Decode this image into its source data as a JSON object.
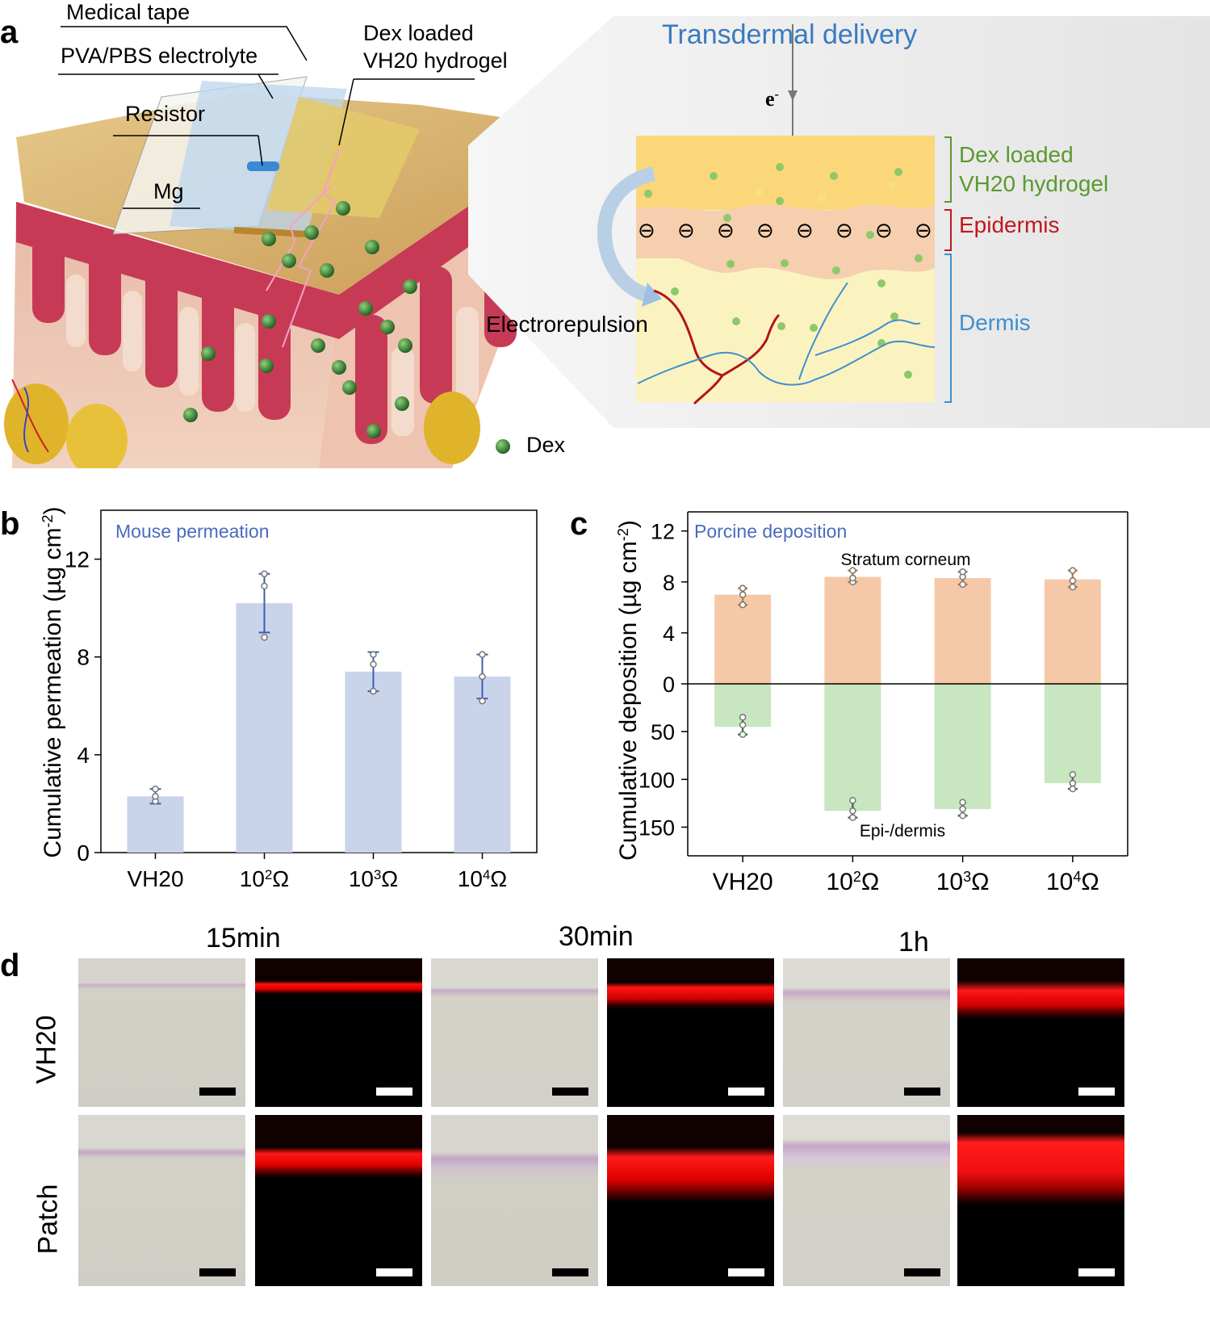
{
  "panel_a": {
    "label": "a",
    "callouts": {
      "medical_tape": "Medical tape",
      "pva_pbs": "PVA/PBS electrolyte",
      "dex_loaded": "Dex loaded",
      "vh20_hydrogel": "VH20 hydrogel",
      "resistor": "Resistor",
      "mg": "Mg"
    },
    "legend_dex": "Dex",
    "transdermal_title": "Transdermal delivery",
    "electron": "e",
    "electron_sup": "-",
    "layers": {
      "hydrogel_line1": "Dex  loaded",
      "hydrogel_line2": "VH20 hydrogel",
      "epidermis": "Epidermis",
      "dermis": "Dermis"
    },
    "electrorepulsion": "Electrorepulsion",
    "charge_symbol": "⊖",
    "colors": {
      "hydrogel_green": "#5a9a2e",
      "epidermis_red": "#c0181e",
      "dermis_blue": "#3d8fd0",
      "title_blue": "#3a7bbf"
    }
  },
  "panel_b": {
    "label": "b",
    "ylabel": "Cumulative permeation (µg cm",
    "ylabel_sup": "-2",
    "ylabel_close": ")",
    "ylabel_parts": [
      "Cumulative permeation (µg cm",
      "-2",
      ")"
    ],
    "annotation": "Mouse permeation",
    "bar_color": "#c9d3ea",
    "err_color": "#3b5fb0"
  },
  "panel_c": {
    "label": "c",
    "ylabel_parts": [
      "Cumulative deposition  (µg cm",
      "-2",
      ")"
    ],
    "annotation": "Porcine deposition",
    "top_label": "Stratum corneum",
    "bottom_label": "Epi-/dermis",
    "top_color": "#f5c9a8",
    "bottom_color": "#c8e6c0"
  },
  "panel_d": {
    "label": "d",
    "columns": [
      "15min",
      "30min",
      "1h"
    ],
    "rows": [
      "VH20",
      "Patch"
    ]
  },
  "chart_data": [
    {
      "type": "bar",
      "title": "Mouse permeation",
      "categories": [
        "VH20",
        "10²Ω",
        "10³Ω",
        "10⁴Ω"
      ],
      "category_parts": [
        [
          "VH20",
          "",
          ""
        ],
        [
          "10",
          "2",
          "Ω"
        ],
        [
          "10",
          "3",
          "Ω"
        ],
        [
          "10",
          "4",
          "Ω"
        ]
      ],
      "values": [
        2.3,
        10.2,
        7.4,
        7.2
      ],
      "errors": [
        0.3,
        1.2,
        0.8,
        0.9
      ],
      "points": [
        [
          2.1,
          2.3,
          2.6
        ],
        [
          8.8,
          10.9,
          11.4
        ],
        [
          6.6,
          7.7,
          8.1
        ],
        [
          6.2,
          7.2,
          8.1
        ]
      ],
      "xlabel": "",
      "ylabel": "Cumulative permeation (µg cm-2)",
      "ylim": [
        0,
        14
      ],
      "yticks": [
        0,
        4,
        8,
        12
      ]
    },
    {
      "type": "bar",
      "title": "Porcine deposition",
      "categories": [
        "VH20",
        "10²Ω",
        "10³Ω",
        "10⁴Ω"
      ],
      "category_parts": [
        [
          "VH20",
          "",
          ""
        ],
        [
          "10",
          "2",
          "Ω"
        ],
        [
          "10",
          "3",
          "Ω"
        ],
        [
          "10",
          "4",
          "Ω"
        ]
      ],
      "series": [
        {
          "name": "Stratum corneum",
          "values": [
            7.0,
            8.4,
            8.3,
            8.2
          ],
          "points": [
            [
              6.2,
              7.0,
              7.5
            ],
            [
              8.0,
              8.3,
              8.9
            ],
            [
              7.8,
              8.4,
              8.8
            ],
            [
              7.6,
              8.1,
              8.9
            ]
          ]
        },
        {
          "name": "Epi-/dermis",
          "values": [
            45,
            133,
            131,
            104
          ],
          "points": [
            [
              35,
              43,
              53
            ],
            [
              122,
              133,
              140
            ],
            [
              124,
              131,
              138
            ],
            [
              95,
              104,
              110
            ]
          ]
        }
      ],
      "ylabel": "Cumulative deposition (µg cm-2)",
      "ytick_labels_top": [
        "12",
        "8",
        "4",
        "0"
      ],
      "ytick_labels_bottom": [
        "50",
        "100",
        "150"
      ],
      "ylim_top": [
        0,
        13.5
      ],
      "ylim_bottom": [
        0,
        180
      ]
    }
  ]
}
